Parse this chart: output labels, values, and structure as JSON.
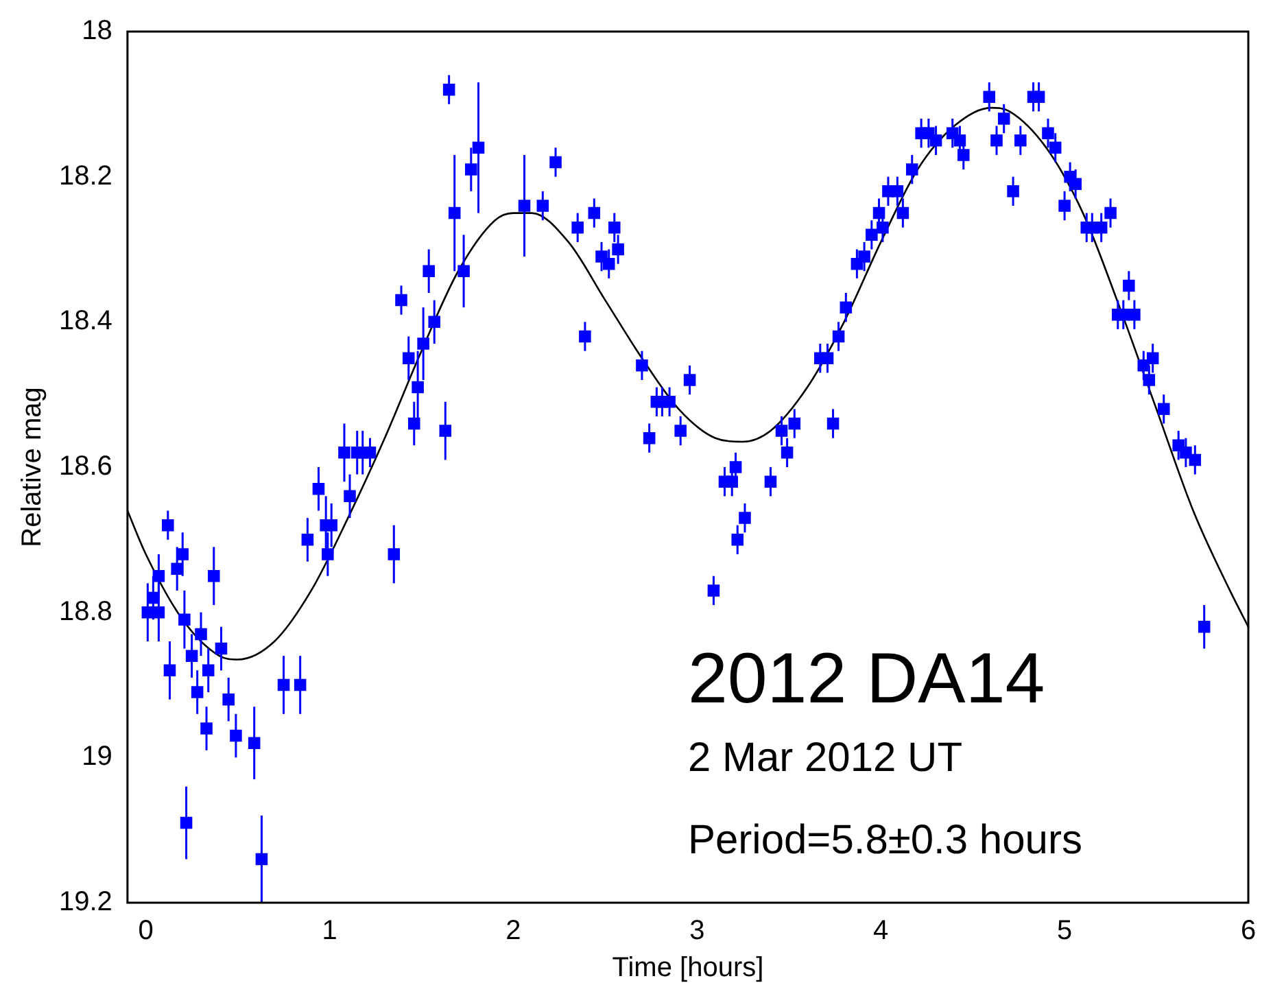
{
  "chart_data": {
    "type": "scatter",
    "xlabel": "Time [hours]",
    "ylabel": "Relative mag",
    "xlim": [
      -0.1,
      6
    ],
    "xticks": [
      0,
      1,
      2,
      3,
      4,
      5,
      6
    ],
    "ylim": [
      19.2,
      18
    ],
    "yticks": [
      18,
      18.2,
      18.4,
      18.6,
      18.8,
      19,
      19.2
    ],
    "grid": false,
    "legend": false,
    "marker": "square",
    "annotations": [
      "2012 DA14",
      "2 Mar 2012 UT",
      "Period=5.8±0.3 hours"
    ],
    "series": [
      {
        "color": "#0000ff",
        "x": [
          0.01,
          0.04,
          0.07,
          0.07,
          0.12,
          0.13,
          0.17,
          0.2,
          0.21,
          0.22,
          0.25,
          0.28,
          0.3,
          0.33,
          0.34,
          0.37,
          0.41,
          0.45,
          0.49,
          0.59,
          0.63,
          0.75,
          0.84,
          0.88,
          0.94,
          0.98,
          0.99,
          1.01,
          1.08,
          1.11,
          1.15,
          1.18,
          1.22,
          1.35,
          1.39,
          1.43,
          1.46,
          1.48,
          1.51,
          1.54,
          1.57,
          1.63,
          1.65,
          1.68,
          1.73,
          1.77,
          1.81,
          2.06,
          2.16,
          2.23,
          2.35,
          2.39,
          2.44,
          2.48,
          2.52,
          2.55,
          2.57,
          2.7,
          2.74,
          2.78,
          2.81,
          2.85,
          2.91,
          2.96,
          3.09,
          3.15,
          3.19,
          3.21,
          3.22,
          3.26,
          3.4,
          3.46,
          3.49,
          3.53,
          3.67,
          3.71,
          3.74,
          3.77,
          3.81,
          3.87,
          3.91,
          3.95,
          3.99,
          4.01,
          4.04,
          4.09,
          4.12,
          4.17,
          4.22,
          4.26,
          4.3,
          4.39,
          4.43,
          4.45,
          4.59,
          4.63,
          4.67,
          4.72,
          4.76,
          4.83,
          4.86,
          4.91,
          4.95,
          5.0,
          5.03,
          5.06,
          5.12,
          5.15,
          5.2,
          5.25,
          5.29,
          5.32,
          5.35,
          5.38,
          5.43,
          5.46,
          5.48,
          5.54,
          5.62,
          5.66,
          5.71,
          5.76
        ],
        "values": [
          18.8,
          18.78,
          18.75,
          18.8,
          18.68,
          18.88,
          18.74,
          18.72,
          18.81,
          19.09,
          18.86,
          18.91,
          18.83,
          18.96,
          18.88,
          18.75,
          18.85,
          18.92,
          18.97,
          18.98,
          19.14,
          18.9,
          18.9,
          18.7,
          18.63,
          18.68,
          18.72,
          18.68,
          18.58,
          18.64,
          18.58,
          18.58,
          18.58,
          18.72,
          18.37,
          18.45,
          18.54,
          18.49,
          18.43,
          18.33,
          18.4,
          18.55,
          18.08,
          18.25,
          18.33,
          18.19,
          18.16,
          18.24,
          18.24,
          18.18,
          18.27,
          18.42,
          18.25,
          18.31,
          18.32,
          18.27,
          18.3,
          18.46,
          18.56,
          18.51,
          18.51,
          18.51,
          18.55,
          18.48,
          18.77,
          18.62,
          18.62,
          18.6,
          18.7,
          18.67,
          18.62,
          18.55,
          18.58,
          18.54,
          18.45,
          18.45,
          18.54,
          18.42,
          18.38,
          18.32,
          18.31,
          18.28,
          18.25,
          18.27,
          18.22,
          18.22,
          18.25,
          18.19,
          18.14,
          18.14,
          18.15,
          18.14,
          18.15,
          18.17,
          18.09,
          18.15,
          18.12,
          18.22,
          18.15,
          18.09,
          18.09,
          18.14,
          18.16,
          18.24,
          18.2,
          18.21,
          18.27,
          18.27,
          18.27,
          18.25,
          18.39,
          18.39,
          18.35,
          18.39,
          18.46,
          18.48,
          18.45,
          18.52,
          18.57,
          18.58,
          18.59,
          18.82
        ],
        "errors": [
          0.04,
          0.03,
          0.03,
          0.04,
          0.02,
          0.04,
          0.03,
          0.03,
          0.04,
          0.05,
          0.03,
          0.03,
          0.03,
          0.03,
          0.03,
          0.04,
          0.03,
          0.03,
          0.03,
          0.05,
          0.06,
          0.04,
          0.04,
          0.03,
          0.03,
          0.04,
          0.03,
          0.03,
          0.04,
          0.03,
          0.03,
          0.03,
          0.02,
          0.04,
          0.02,
          0.03,
          0.03,
          0.05,
          0.05,
          0.03,
          0.03,
          0.04,
          0.02,
          0.08,
          0.05,
          0.03,
          0.09,
          0.07,
          0.02,
          0.02,
          0.02,
          0.02,
          0.02,
          0.02,
          0.02,
          0.02,
          0.02,
          0.02,
          0.02,
          0.02,
          0.02,
          0.02,
          0.02,
          0.02,
          0.02,
          0.02,
          0.02,
          0.02,
          0.02,
          0.02,
          0.02,
          0.02,
          0.02,
          0.02,
          0.02,
          0.02,
          0.02,
          0.02,
          0.02,
          0.02,
          0.02,
          0.02,
          0.02,
          0.02,
          0.02,
          0.02,
          0.02,
          0.02,
          0.02,
          0.02,
          0.02,
          0.02,
          0.02,
          0.02,
          0.02,
          0.02,
          0.02,
          0.02,
          0.02,
          0.02,
          0.02,
          0.02,
          0.02,
          0.02,
          0.02,
          0.02,
          0.02,
          0.02,
          0.02,
          0.02,
          0.02,
          0.02,
          0.02,
          0.02,
          0.02,
          0.02,
          0.02,
          0.02,
          0.02,
          0.02,
          0.02,
          0.03
        ]
      },
      {
        "type": "line",
        "color": "#000000",
        "marker": "none",
        "line_style": "solid",
        "x": [
          -0.1,
          0,
          0.2,
          0.4,
          0.5,
          0.7,
          0.9,
          1.1,
          1.3,
          1.5,
          1.7,
          1.9,
          2.0,
          2.1,
          2.3,
          2.5,
          2.7,
          2.9,
          3.1,
          3.25,
          3.4,
          3.6,
          3.8,
          4.0,
          4.2,
          4.4,
          4.6,
          4.7,
          4.9,
          5.1,
          5.3,
          5.5,
          5.7,
          5.9,
          6.0
        ],
        "values": [
          18.66,
          18.72,
          18.81,
          18.86,
          18.865,
          18.84,
          18.77,
          18.67,
          18.56,
          18.44,
          18.33,
          18.26,
          18.25,
          18.25,
          18.29,
          18.37,
          18.45,
          18.52,
          18.56,
          18.565,
          18.55,
          18.49,
          18.4,
          18.29,
          18.19,
          18.13,
          18.105,
          18.11,
          18.16,
          18.25,
          18.38,
          18.52,
          18.66,
          18.77,
          18.82
        ]
      }
    ]
  }
}
